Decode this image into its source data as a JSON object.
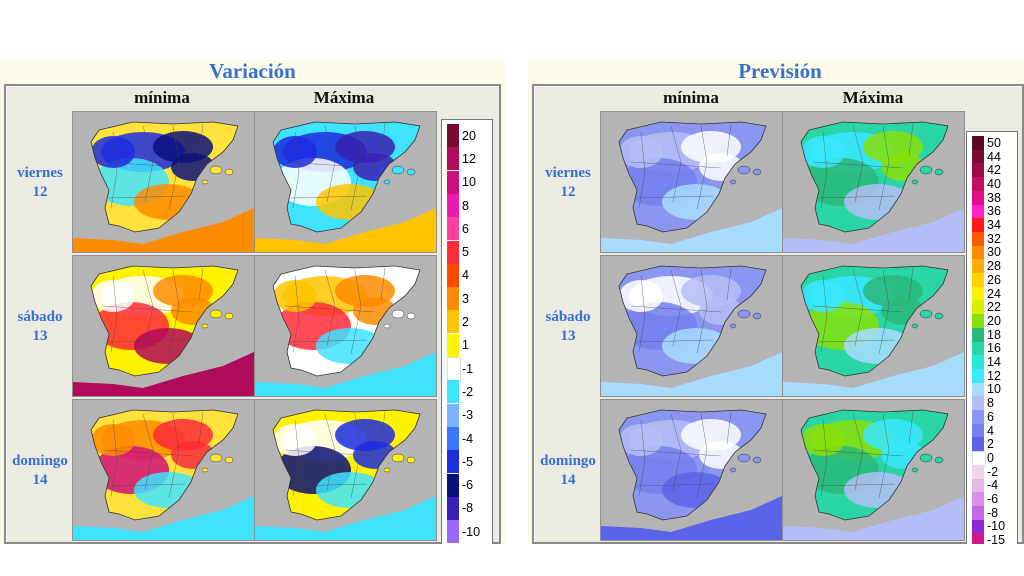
{
  "panels": {
    "left": {
      "title": "Variación"
    },
    "right": {
      "title": "Previsión"
    }
  },
  "columns": {
    "min": "mínima",
    "max": "Máxima"
  },
  "days": [
    {
      "name": "viernes",
      "num": "12"
    },
    {
      "name": "sábado",
      "num": "13"
    },
    {
      "name": "domingo",
      "num": "14"
    }
  ],
  "legend_variation": [
    {
      "label": "20",
      "color": "#7a0a2e"
    },
    {
      "label": "12",
      "color": "#b00a5a"
    },
    {
      "label": "10",
      "color": "#d0107a"
    },
    {
      "label": "8",
      "color": "#ec1ab0"
    },
    {
      "label": "6",
      "color": "#ff3fa0"
    },
    {
      "label": "5",
      "color": "#ff2a3a"
    },
    {
      "label": "4",
      "color": "#ff4a00"
    },
    {
      "label": "3",
      "color": "#ff8c00"
    },
    {
      "label": "2",
      "color": "#ffc400"
    },
    {
      "label": "1",
      "color": "#fff200"
    },
    {
      "label": "-1",
      "color": "#ffffff"
    },
    {
      "label": "-2",
      "color": "#3fe3ff"
    },
    {
      "label": "-3",
      "color": "#7ab4ff"
    },
    {
      "label": "-4",
      "color": "#3a74ff"
    },
    {
      "label": "-5",
      "color": "#1c2ce0"
    },
    {
      "label": "-6",
      "color": "#0a107a"
    },
    {
      "label": "-8",
      "color": "#3a20b4"
    },
    {
      "label": "-10",
      "color": "#9a6aff"
    }
  ],
  "legend_forecast": [
    {
      "label": "50",
      "color": "#5a0a28"
    },
    {
      "label": "44",
      "color": "#7a0a32"
    },
    {
      "label": "42",
      "color": "#9a0a46"
    },
    {
      "label": "40",
      "color": "#c0105e"
    },
    {
      "label": "38",
      "color": "#e0108a"
    },
    {
      "label": "36",
      "color": "#ff20c8"
    },
    {
      "label": "34",
      "color": "#ff1a1a"
    },
    {
      "label": "32",
      "color": "#ff5a00"
    },
    {
      "label": "30",
      "color": "#ff8c00"
    },
    {
      "label": "28",
      "color": "#ffae00"
    },
    {
      "label": "26",
      "color": "#ffd200"
    },
    {
      "label": "24",
      "color": "#fff000"
    },
    {
      "label": "22",
      "color": "#d8f000"
    },
    {
      "label": "20",
      "color": "#88e00a"
    },
    {
      "label": "18",
      "color": "#2ab87a"
    },
    {
      "label": "16",
      "color": "#2ad6a6"
    },
    {
      "label": "14",
      "color": "#28e6d6"
    },
    {
      "label": "12",
      "color": "#3ae8ff"
    },
    {
      "label": "10",
      "color": "#a8dcff"
    },
    {
      "label": "8",
      "color": "#b4bef6"
    },
    {
      "label": "6",
      "color": "#8a96f0"
    },
    {
      "label": "4",
      "color": "#7280ee"
    },
    {
      "label": "2",
      "color": "#5a64e8"
    },
    {
      "label": "0",
      "color": "#ffffff"
    },
    {
      "label": "-2",
      "color": "#f0d6e6"
    },
    {
      "label": "-4",
      "color": "#e6b4e6"
    },
    {
      "label": "-6",
      "color": "#d890e6"
    },
    {
      "label": "-8",
      "color": "#c06ae6"
    },
    {
      "label": "-10",
      "color": "#8a2ad6"
    },
    {
      "label": "-15",
      "color": "#d01a8a"
    }
  ],
  "maps": {
    "var": [
      {
        "land": "#ffe23c",
        "blobs": [
          "#1c2ce0",
          "#0a107a",
          "#3fe3ff",
          "#ff8c00"
        ]
      },
      {
        "land": "#3fe3ff",
        "blobs": [
          "#1c2ce0",
          "#3a20b4",
          "#ffffff",
          "#ffc400"
        ]
      },
      {
        "land": "#fff200",
        "blobs": [
          "#ffffff",
          "#ff8c00",
          "#ff2a3a",
          "#b00a5a"
        ]
      },
      {
        "land": "#ffffff",
        "blobs": [
          "#ffc400",
          "#ff8c00",
          "#ff2a3a",
          "#3fe3ff"
        ]
      },
      {
        "land": "#ffe23c",
        "blobs": [
          "#ff8c00",
          "#ff2a3a",
          "#d0107a",
          "#3fe3ff"
        ]
      },
      {
        "land": "#fff200",
        "blobs": [
          "#ffffff",
          "#1c2ce0",
          "#0a107a",
          "#3fe3ff"
        ]
      }
    ],
    "fc": [
      {
        "land": "#8a96f0",
        "blobs": [
          "#b4bef6",
          "#ffffff",
          "#7280ee",
          "#a8dcff"
        ]
      },
      {
        "land": "#2ad6a6",
        "blobs": [
          "#3ae8ff",
          "#88e00a",
          "#2ab87a",
          "#b4bef6"
        ]
      },
      {
        "land": "#8a96f0",
        "blobs": [
          "#ffffff",
          "#b4bef6",
          "#7280ee",
          "#a8dcff"
        ]
      },
      {
        "land": "#2ad6a6",
        "blobs": [
          "#3ae8ff",
          "#2ab87a",
          "#88e00a",
          "#a8dcff"
        ]
      },
      {
        "land": "#8a96f0",
        "blobs": [
          "#b4bef6",
          "#ffffff",
          "#7280ee",
          "#5a64e8"
        ]
      },
      {
        "land": "#2ad6a6",
        "blobs": [
          "#88e00a",
          "#3ae8ff",
          "#2ab87a",
          "#b4bef6"
        ]
      }
    ]
  }
}
